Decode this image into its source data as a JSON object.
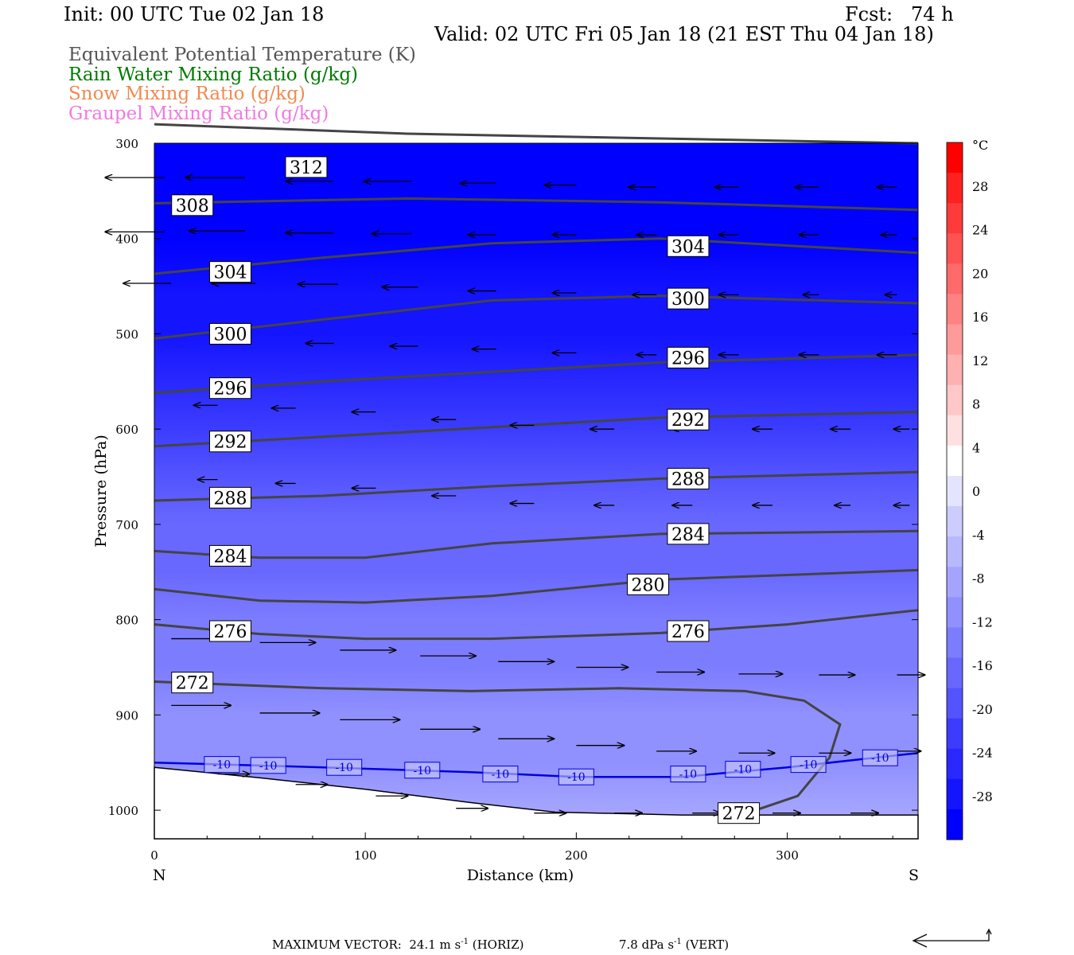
{
  "header": {
    "init": "Init: 00 UTC Tue 02 Jan 18",
    "fcst": "Fcst:   74 h",
    "valid": "Valid: 02 UTC Fri 05 Jan 18 (21 EST Thu 04 Jan 18)"
  },
  "legend": [
    {
      "text": "Equivalent Potential Temperature (K)",
      "color": "#555555"
    },
    {
      "text": "Rain Water Mixing Ratio (g/kg)",
      "color": "#007a00"
    },
    {
      "text": "Snow Mixing Ratio (g/kg)",
      "color": "#f08a50"
    },
    {
      "text": "Graupel Mixing Ratio (g/kg)",
      "color": "#f07ae0"
    }
  ],
  "footer": {
    "max_vector": "MAXIMUM VECTOR:  24.1 m s",
    "horiz_unit": "-1",
    "horiz_tail": " (HORIZ)",
    "vert": "7.8 dPa s",
    "vert_unit": "-1",
    "vert_tail": " (VERT)"
  },
  "chart_data": {
    "type": "cross-section",
    "xlabel": "Distance (km)",
    "ylabel": "Pressure (hPa)",
    "xlim": [
      0,
      362
    ],
    "ylim": [
      1030,
      300
    ],
    "x_ticks": [
      0,
      100,
      200,
      300
    ],
    "y_ticks": [
      300,
      400,
      500,
      600,
      700,
      800,
      900,
      1000
    ],
    "endpoints": {
      "left": "N",
      "right": "S"
    },
    "colorbar": {
      "unit": "°C",
      "min": -32,
      "max": 32,
      "tick_labels": [
        "28",
        "24",
        "20",
        "16",
        "12",
        "8",
        "4",
        "0",
        "-4",
        "-8",
        "-12",
        "-16",
        "-20",
        "-24",
        "-28"
      ],
      "tick_values": [
        28,
        24,
        20,
        16,
        12,
        8,
        4,
        0,
        -4,
        -8,
        -12,
        -16,
        -20,
        -24,
        -28
      ],
      "colors": [
        "#ff0000",
        "#ff2020",
        "#ff3a3a",
        "#ff5252",
        "#ff6a6a",
        "#ff8282",
        "#ff9a9a",
        "#ffb0b0",
        "#ffc8c8",
        "#ffe0e0",
        "#ffffff",
        "#e4e4ff",
        "#ccccff",
        "#b8b8ff",
        "#a4a4ff",
        "#9090ff",
        "#7c7cff",
        "#6868ff",
        "#5454ff",
        "#3c3cff",
        "#2828ff",
        "#1414ff",
        "#0000ff"
      ]
    },
    "temperature_fill": [
      {
        "p": 300,
        "t": -31
      },
      {
        "p": 400,
        "t": -30
      },
      {
        "p": 460,
        "t": -29
      },
      {
        "p": 500,
        "t": -27
      },
      {
        "p": 550,
        "t": -24
      },
      {
        "p": 600,
        "t": -22
      },
      {
        "p": 650,
        "t": -20
      },
      {
        "p": 700,
        "t": -18
      },
      {
        "p": 750,
        "t": -16
      },
      {
        "p": 800,
        "t": -15
      },
      {
        "p": 850,
        "t": -14
      },
      {
        "p": 900,
        "t": -12
      },
      {
        "p": 950,
        "t": -10
      },
      {
        "p": 1000,
        "t": -7
      },
      {
        "p": 1030,
        "t": -6
      }
    ],
    "terrain": [
      [
        0,
        955
      ],
      [
        50,
        966
      ],
      [
        100,
        978
      ],
      [
        150,
        992
      ],
      [
        190,
        1002
      ],
      [
        250,
        1005
      ],
      [
        362,
        1005
      ]
    ],
    "theta_e_contours": [
      {
        "level": "312",
        "points": [
          [
            0,
            280
          ],
          [
            120,
            290
          ],
          [
            240,
            295
          ],
          [
            362,
            300
          ]
        ],
        "labels": [
          [
            72,
            325
          ]
        ]
      },
      {
        "level": "308",
        "points": [
          [
            0,
            363
          ],
          [
            120,
            358
          ],
          [
            240,
            362
          ],
          [
            362,
            370
          ]
        ],
        "labels": [
          [
            18,
            365
          ]
        ]
      },
      {
        "level": "304",
        "points": [
          [
            0,
            437
          ],
          [
            80,
            420
          ],
          [
            160,
            405
          ],
          [
            240,
            400
          ],
          [
            362,
            415
          ]
        ],
        "labels": [
          [
            36,
            435
          ],
          [
            253,
            408
          ]
        ]
      },
      {
        "level": "300",
        "points": [
          [
            0,
            505
          ],
          [
            80,
            485
          ],
          [
            160,
            465
          ],
          [
            240,
            460
          ],
          [
            362,
            468
          ]
        ],
        "labels": [
          [
            36,
            500
          ],
          [
            253,
            463
          ]
        ]
      },
      {
        "level": "296",
        "points": [
          [
            0,
            562
          ],
          [
            80,
            550
          ],
          [
            160,
            540
          ],
          [
            240,
            530
          ],
          [
            362,
            522
          ]
        ],
        "labels": [
          [
            36,
            557
          ],
          [
            253,
            525
          ]
        ]
      },
      {
        "level": "292",
        "points": [
          [
            0,
            618
          ],
          [
            80,
            608
          ],
          [
            160,
            598
          ],
          [
            240,
            588
          ],
          [
            362,
            582
          ]
        ],
        "labels": [
          [
            36,
            613
          ],
          [
            253,
            590
          ]
        ]
      },
      {
        "level": "288",
        "points": [
          [
            0,
            675
          ],
          [
            80,
            670
          ],
          [
            160,
            660
          ],
          [
            240,
            652
          ],
          [
            362,
            645
          ]
        ],
        "labels": [
          [
            36,
            672
          ],
          [
            253,
            652
          ]
        ]
      },
      {
        "level": "284",
        "points": [
          [
            0,
            728
          ],
          [
            50,
            735
          ],
          [
            100,
            735
          ],
          [
            160,
            720
          ],
          [
            240,
            710
          ],
          [
            362,
            707
          ]
        ],
        "labels": [
          [
            36,
            733
          ],
          [
            253,
            710
          ]
        ]
      },
      {
        "level": "280",
        "points": [
          [
            0,
            768
          ],
          [
            50,
            780
          ],
          [
            100,
            782
          ],
          [
            160,
            775
          ],
          [
            240,
            758
          ],
          [
            362,
            748
          ]
        ],
        "labels": [
          [
            234,
            763
          ]
        ]
      },
      {
        "level": "276",
        "points": [
          [
            0,
            805
          ],
          [
            50,
            815
          ],
          [
            100,
            820
          ],
          [
            160,
            820
          ],
          [
            240,
            814
          ],
          [
            300,
            805
          ],
          [
            362,
            790
          ]
        ],
        "labels": [
          [
            36,
            812
          ],
          [
            253,
            812
          ]
        ]
      },
      {
        "level": "272",
        "points": [
          [
            0,
            865
          ],
          [
            80,
            872
          ],
          [
            150,
            875
          ],
          [
            220,
            872
          ],
          [
            280,
            875
          ],
          [
            308,
            885
          ],
          [
            325,
            910
          ],
          [
            320,
            945
          ],
          [
            305,
            985
          ],
          [
            285,
            1000
          ]
        ],
        "labels": [
          [
            18,
            866
          ],
          [
            277,
            1003
          ]
        ]
      }
    ],
    "temperature_contours": [
      {
        "level": "-10",
        "color": "#0000dd",
        "points": [
          [
            0,
            950
          ],
          [
            80,
            955
          ],
          [
            150,
            960
          ],
          [
            200,
            965
          ],
          [
            250,
            965
          ],
          [
            300,
            955
          ],
          [
            362,
            940
          ]
        ],
        "labels": [
          [
            32,
            952
          ],
          [
            54,
            953
          ],
          [
            90,
            955
          ],
          [
            127,
            958
          ],
          [
            164,
            962
          ],
          [
            200,
            965
          ],
          [
            253,
            962
          ],
          [
            279,
            957
          ],
          [
            310,
            952
          ],
          [
            344,
            945
          ]
        ]
      }
    ],
    "wind_vectors": [
      {
        "x": 5,
        "p": 336,
        "u": -30
      },
      {
        "x": 43,
        "p": 336,
        "u": -30
      },
      {
        "x": 85,
        "p": 340,
        "u": -24
      },
      {
        "x": 122,
        "p": 340,
        "u": -24
      },
      {
        "x": 162,
        "p": 342,
        "u": -18
      },
      {
        "x": 200,
        "p": 344,
        "u": -16
      },
      {
        "x": 238,
        "p": 346,
        "u": -14
      },
      {
        "x": 277,
        "p": 346,
        "u": -12
      },
      {
        "x": 315,
        "p": 346,
        "u": -12
      },
      {
        "x": 352,
        "p": 346,
        "u": -10
      },
      {
        "x": 5,
        "p": 393,
        "u": -30
      },
      {
        "x": 43,
        "p": 392,
        "u": -28
      },
      {
        "x": 85,
        "p": 394,
        "u": -24
      },
      {
        "x": 122,
        "p": 395,
        "u": -20
      },
      {
        "x": 162,
        "p": 396,
        "u": -14
      },
      {
        "x": 200,
        "p": 396,
        "u": -12
      },
      {
        "x": 238,
        "p": 396,
        "u": -10
      },
      {
        "x": 277,
        "p": 396,
        "u": -10
      },
      {
        "x": 315,
        "p": 396,
        "u": -10
      },
      {
        "x": 352,
        "p": 396,
        "u": -8
      },
      {
        "x": 8,
        "p": 447,
        "u": -24
      },
      {
        "x": 48,
        "p": 447,
        "u": -22
      },
      {
        "x": 87,
        "p": 448,
        "u": -20
      },
      {
        "x": 125,
        "p": 451,
        "u": -18
      },
      {
        "x": 162,
        "p": 455,
        "u": -14
      },
      {
        "x": 200,
        "p": 457,
        "u": -12
      },
      {
        "x": 238,
        "p": 459,
        "u": -12
      },
      {
        "x": 277,
        "p": 459,
        "u": -10
      },
      {
        "x": 315,
        "p": 459,
        "u": -8
      },
      {
        "x": 352,
        "p": 459,
        "u": -6
      },
      {
        "x": 45,
        "p": 508,
        "u": -14
      },
      {
        "x": 85,
        "p": 510,
        "u": -14
      },
      {
        "x": 125,
        "p": 513,
        "u": -14
      },
      {
        "x": 162,
        "p": 516,
        "u": -12
      },
      {
        "x": 200,
        "p": 520,
        "u": -12
      },
      {
        "x": 238,
        "p": 522,
        "u": -10
      },
      {
        "x": 277,
        "p": 522,
        "u": -10
      },
      {
        "x": 315,
        "p": 522,
        "u": -10
      },
      {
        "x": 352,
        "p": 522,
        "u": -10
      },
      {
        "x": 30,
        "p": 575,
        "u": -12
      },
      {
        "x": 67,
        "p": 578,
        "u": -12
      },
      {
        "x": 105,
        "p": 582,
        "u": -12
      },
      {
        "x": 143,
        "p": 590,
        "u": -12
      },
      {
        "x": 180,
        "p": 596,
        "u": -12
      },
      {
        "x": 218,
        "p": 600,
        "u": -12
      },
      {
        "x": 255,
        "p": 600,
        "u": -10
      },
      {
        "x": 293,
        "p": 600,
        "u": -10
      },
      {
        "x": 330,
        "p": 600,
        "u": -10
      },
      {
        "x": 358,
        "p": 600,
        "u": -8
      },
      {
        "x": 30,
        "p": 653,
        "u": -10
      },
      {
        "x": 67,
        "p": 657,
        "u": -10
      },
      {
        "x": 105,
        "p": 662,
        "u": -12
      },
      {
        "x": 143,
        "p": 670,
        "u": -12
      },
      {
        "x": 180,
        "p": 678,
        "u": -12
      },
      {
        "x": 218,
        "p": 680,
        "u": -10
      },
      {
        "x": 255,
        "p": 680,
        "u": -10
      },
      {
        "x": 293,
        "p": 680,
        "u": -10
      },
      {
        "x": 330,
        "p": 680,
        "u": -8
      },
      {
        "x": 358,
        "p": 680,
        "u": -8
      },
      {
        "x": 8,
        "p": 820,
        "u": 28
      },
      {
        "x": 50,
        "p": 824,
        "u": 28
      },
      {
        "x": 88,
        "p": 832,
        "u": 28
      },
      {
        "x": 126,
        "p": 838,
        "u": 28
      },
      {
        "x": 163,
        "p": 844,
        "u": 28
      },
      {
        "x": 200,
        "p": 850,
        "u": 26
      },
      {
        "x": 238,
        "p": 855,
        "u": 24
      },
      {
        "x": 277,
        "p": 857,
        "u": 22
      },
      {
        "x": 315,
        "p": 858,
        "u": 18
      },
      {
        "x": 352,
        "p": 858,
        "u": 14
      },
      {
        "x": 8,
        "p": 890,
        "u": 30
      },
      {
        "x": 50,
        "p": 898,
        "u": 30
      },
      {
        "x": 88,
        "p": 905,
        "u": 30
      },
      {
        "x": 126,
        "p": 915,
        "u": 30
      },
      {
        "x": 163,
        "p": 925,
        "u": 28
      },
      {
        "x": 200,
        "p": 932,
        "u": 24
      },
      {
        "x": 238,
        "p": 938,
        "u": 20
      },
      {
        "x": 277,
        "p": 940,
        "u": 18
      },
      {
        "x": 315,
        "p": 940,
        "u": 16
      },
      {
        "x": 352,
        "p": 938,
        "u": 12
      },
      {
        "x": 30,
        "p": 962,
        "u": 16
      },
      {
        "x": 67,
        "p": 973,
        "u": 16
      },
      {
        "x": 105,
        "p": 985,
        "u": 16
      },
      {
        "x": 143,
        "p": 998,
        "u": 16
      },
      {
        "x": 180,
        "p": 1003,
        "u": 16
      },
      {
        "x": 218,
        "p": 1003,
        "u": 14
      },
      {
        "x": 255,
        "p": 1003,
        "u": 14
      },
      {
        "x": 293,
        "p": 1003,
        "u": 14
      },
      {
        "x": 330,
        "p": 1003,
        "u": 14
      }
    ],
    "vector_scale_units": [
      24.1,
      7.8
    ]
  }
}
